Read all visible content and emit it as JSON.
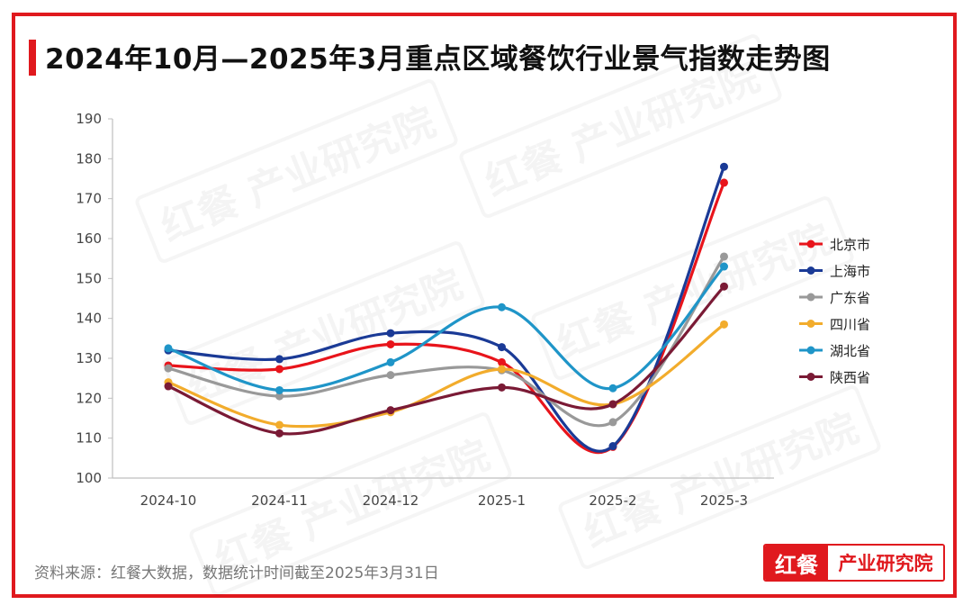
{
  "title": "2024年10月—2025年3月重点区域餐饮行业景气指数走势图",
  "source_note": "资料来源：红餐大数据，数据统计时间截至2025年3月31日",
  "logo": {
    "mark": "红餐",
    "text": "产业研究院"
  },
  "watermark_text": "红餐 产业研究院",
  "colors": {
    "frame": "#e0191e"
  },
  "chart_data": {
    "type": "line",
    "title": "2024年10月—2025年3月重点区域餐饮行业景气指数走势图",
    "categories": [
      "2024-10",
      "2024-11",
      "2024-12",
      "2025-1",
      "2025-2",
      "2025-3"
    ],
    "ylim": [
      100,
      190
    ],
    "yticks": [
      100,
      110,
      120,
      130,
      140,
      150,
      160,
      170,
      180,
      190
    ],
    "grid": false,
    "legend_position": "right",
    "smooth": true,
    "series": [
      {
        "name": "北京市",
        "color": "#e8141b",
        "values": [
          128.2,
          127.3,
          133.5,
          129.0,
          107.8,
          174.0
        ]
      },
      {
        "name": "上海市",
        "color": "#1a3a96",
        "values": [
          132.0,
          129.8,
          136.3,
          132.8,
          108.0,
          178.0
        ]
      },
      {
        "name": "广东省",
        "color": "#999999",
        "values": [
          127.5,
          120.5,
          125.8,
          127.0,
          114.0,
          155.5
        ]
      },
      {
        "name": "四川省",
        "color": "#f2ac2c",
        "values": [
          124.0,
          113.3,
          116.5,
          127.3,
          118.5,
          138.5
        ]
      },
      {
        "name": "湖北省",
        "color": "#1f95c8",
        "values": [
          132.5,
          122.0,
          129.0,
          142.8,
          122.5,
          153.0
        ]
      },
      {
        "name": "陕西省",
        "color": "#7a1a35",
        "values": [
          123.0,
          111.2,
          117.0,
          122.7,
          118.5,
          148.0
        ]
      }
    ]
  }
}
